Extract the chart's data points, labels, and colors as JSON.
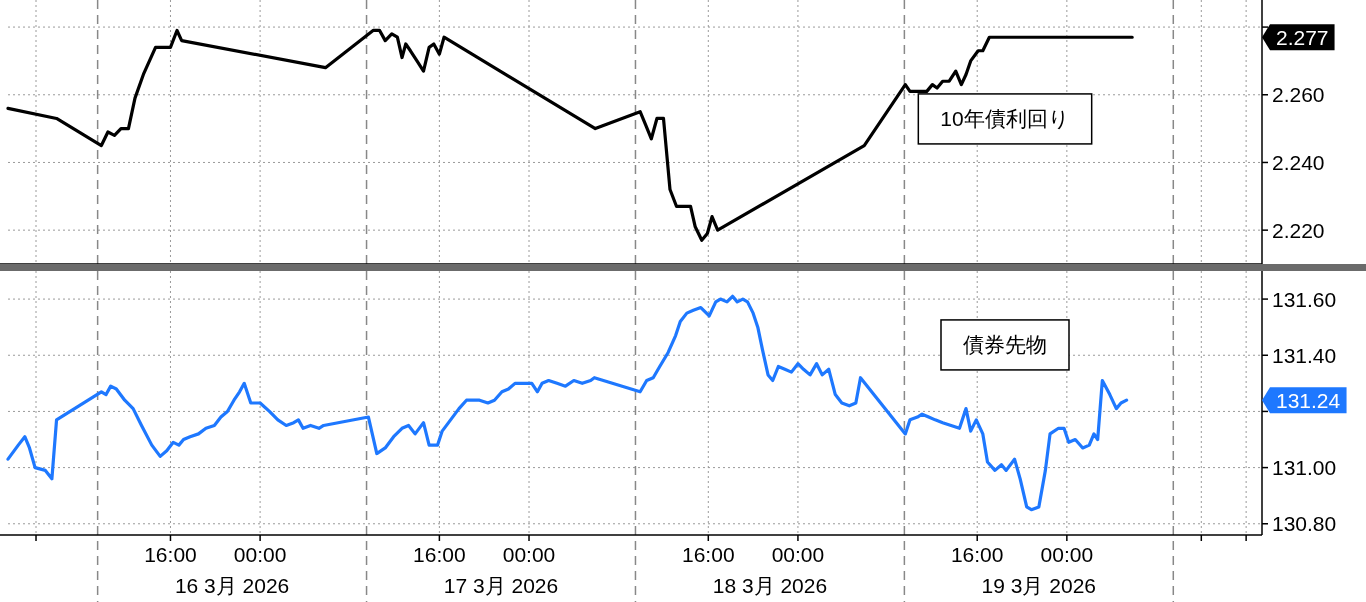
{
  "chart_data": [
    {
      "type": "line",
      "xlim": [
        "2026-03-16T01:30",
        "2026-03-20T17:25"
      ],
      "ylim": [
        2.21,
        2.288
      ],
      "grid": true,
      "tick_labels": "y",
      "xticks": [
        {
          "value": "2026-03-16T04:00",
          "label": null
        },
        {
          "value": "2026-03-16T16:00",
          "label": null
        },
        {
          "value": "2026-03-17T00:00",
          "label": null
        },
        {
          "value": "2026-03-17T16:00",
          "label": null
        },
        {
          "value": "2026-03-18T00:00",
          "label": null
        },
        {
          "value": "2026-03-18T16:00",
          "label": null
        },
        {
          "value": "2026-03-19T00:00",
          "label": null
        },
        {
          "value": "2026-03-19T16:00",
          "label": null
        },
        {
          "value": "2026-03-20T00:00",
          "label": null
        },
        {
          "value": "2026-03-20T12:00",
          "label": null
        },
        {
          "value": "2026-03-20T16:00",
          "label": null
        }
      ],
      "yticks": [
        {
          "value": 2.22,
          "label": "2.220"
        },
        {
          "value": 2.24,
          "label": "2.240"
        },
        {
          "value": 2.26,
          "label": "2.260"
        },
        {
          "value": 2.28,
          "label": null
        }
      ],
      "ref_lines": [
        {
          "axis": "x",
          "value": "2026-03-16T09:30",
          "line_style": "dashed",
          "color": "#888888"
        },
        {
          "axis": "x",
          "value": "2026-03-17T09:30",
          "line_style": "dashed",
          "color": "#888888"
        },
        {
          "axis": "x",
          "value": "2026-03-18T09:30",
          "line_style": "dashed",
          "color": "#888888"
        },
        {
          "axis": "x",
          "value": "2026-03-19T09:30",
          "line_style": "dashed",
          "color": "#888888"
        },
        {
          "axis": "x",
          "value": "2026-03-20T09:30",
          "line_style": "dashed",
          "color": "#888888"
        }
      ],
      "annotations": [
        "2.277"
      ],
      "series": [
        {
          "name": "10年債利回り",
          "color": "#000000",
          "x": [
            "2026-03-16T01:30",
            "2026-03-16T05:50",
            "2026-03-16T09:50",
            "2026-03-16T10:25",
            "2026-03-16T11:00",
            "2026-03-16T11:35",
            "2026-03-16T12:15",
            "2026-03-16T12:50",
            "2026-03-16T13:35",
            "2026-03-16T14:40",
            "2026-03-16T16:00",
            "2026-03-16T16:35",
            "2026-03-16T17:00",
            "2026-03-17T05:50",
            "2026-03-17T10:05",
            "2026-03-17T10:40",
            "2026-03-17T11:10",
            "2026-03-17T11:45",
            "2026-03-17T12:15",
            "2026-03-17T12:40",
            "2026-03-17T13:00",
            "2026-03-17T13:25",
            "2026-03-17T14:00",
            "2026-03-17T14:35",
            "2026-03-17T15:05",
            "2026-03-17T15:30",
            "2026-03-17T16:00",
            "2026-03-17T16:25",
            "2026-03-18T05:55",
            "2026-03-18T09:55",
            "2026-03-18T10:25",
            "2026-03-18T10:55",
            "2026-03-18T11:25",
            "2026-03-18T12:00",
            "2026-03-18T12:15",
            "2026-03-18T12:35",
            "2026-03-18T13:10",
            "2026-03-18T14:00",
            "2026-03-18T14:25",
            "2026-03-18T14:50",
            "2026-03-18T15:25",
            "2026-03-18T15:55",
            "2026-03-18T16:20",
            "2026-03-18T16:50",
            "2026-03-19T05:55",
            "2026-03-19T09:35",
            "2026-03-19T10:00",
            "2026-03-19T10:30",
            "2026-03-19T10:55",
            "2026-03-19T11:30",
            "2026-03-19T12:00",
            "2026-03-19T12:25",
            "2026-03-19T12:55",
            "2026-03-19T13:30",
            "2026-03-19T14:05",
            "2026-03-19T14:35",
            "2026-03-19T15:00",
            "2026-03-19T15:25",
            "2026-03-19T16:05",
            "2026-03-19T16:30",
            "2026-03-19T17:05",
            "2026-03-20T05:50"
          ],
          "values": [
            2.256,
            2.253,
            2.245,
            2.249,
            2.248,
            2.25,
            2.25,
            2.259,
            2.266,
            2.274,
            2.274,
            2.279,
            2.276,
            2.268,
            2.279,
            2.279,
            2.276,
            2.278,
            2.277,
            2.271,
            2.275,
            2.273,
            2.27,
            2.267,
            2.274,
            2.275,
            2.272,
            2.277,
            2.25,
            2.255,
            2.251,
            2.247,
            2.253,
            2.253,
            2.244,
            2.232,
            2.227,
            2.227,
            2.227,
            2.221,
            2.217,
            2.219,
            2.224,
            2.22,
            2.245,
            2.263,
            2.261,
            2.261,
            2.261,
            2.261,
            2.263,
            2.262,
            2.264,
            2.264,
            2.267,
            2.263,
            2.266,
            2.27,
            2.273,
            2.273,
            2.277,
            2.277
          ]
        }
      ]
    },
    {
      "type": "line",
      "xlim": [
        "2026-03-16T01:30",
        "2026-03-20T17:25"
      ],
      "ylim": [
        130.76,
        131.7
      ],
      "grid": true,
      "xticks": [
        {
          "value": "2026-03-16T04:00",
          "label": null
        },
        {
          "value": "2026-03-16T16:00",
          "label": "16:00"
        },
        {
          "value": "2026-03-17T00:00",
          "label": "00:00"
        },
        {
          "value": "2026-03-17T16:00",
          "label": "16:00"
        },
        {
          "value": "2026-03-18T00:00",
          "label": "00:00"
        },
        {
          "value": "2026-03-18T16:00",
          "label": "16:00"
        },
        {
          "value": "2026-03-19T00:00",
          "label": "00:00"
        },
        {
          "value": "2026-03-19T16:00",
          "label": "16:00"
        },
        {
          "value": "2026-03-20T00:00",
          "label": "00:00"
        },
        {
          "value": "2026-03-20T12:00",
          "label": null
        },
        {
          "value": "2026-03-20T16:00",
          "label": null
        }
      ],
      "yticks": [
        {
          "value": 130.8,
          "label": "130.80"
        },
        {
          "value": 131.0,
          "label": "131.00"
        },
        {
          "value": 131.2,
          "label": null
        },
        {
          "value": 131.4,
          "label": "131.40"
        },
        {
          "value": 131.6,
          "label": "131.60"
        }
      ],
      "ref_lines": [
        {
          "axis": "x",
          "value": "2026-03-16T09:30",
          "line_style": "dashed",
          "color": "#888888"
        },
        {
          "axis": "x",
          "value": "2026-03-17T09:30",
          "line_style": "dashed",
          "color": "#888888"
        },
        {
          "axis": "x",
          "value": "2026-03-18T09:30",
          "line_style": "dashed",
          "color": "#888888"
        },
        {
          "axis": "x",
          "value": "2026-03-19T09:30",
          "line_style": "dashed",
          "color": "#888888"
        },
        {
          "axis": "x",
          "value": "2026-03-20T09:30",
          "line_style": "dashed",
          "color": "#888888"
        }
      ],
      "annotations": [
        "131.24",
        "16 3月 2026",
        "17 3月 2026",
        "18 3月 2026",
        "19 3月 2026"
      ],
      "series": [
        {
          "name": "債券先物",
          "color": "#1e78ff",
          "x": [
            "2026-03-16T01:30",
            "2026-03-16T02:25",
            "2026-03-16T03:00",
            "2026-03-16T03:25",
            "2026-03-16T03:55",
            "2026-03-16T04:50",
            "2026-03-16T05:25",
            "2026-03-16T05:50",
            "2026-03-16T09:50",
            "2026-03-16T10:15",
            "2026-03-16T10:40",
            "2026-03-16T11:10",
            "2026-03-16T11:55",
            "2026-03-16T12:40",
            "2026-03-16T13:25",
            "2026-03-16T14:20",
            "2026-03-16T15:05",
            "2026-03-16T15:40",
            "2026-03-16T16:15",
            "2026-03-16T16:45",
            "2026-03-16T17:10",
            "2026-03-16T17:45",
            "2026-03-16T18:30",
            "2026-03-16T19:10",
            "2026-03-16T19:55",
            "2026-03-16T20:30",
            "2026-03-16T21:05",
            "2026-03-16T21:40",
            "2026-03-16T22:10",
            "2026-03-16T22:35",
            "2026-03-16T23:10",
            "2026-03-17T00:00",
            "2026-03-17T00:50",
            "2026-03-17T01:35",
            "2026-03-17T02:20",
            "2026-03-17T03:00",
            "2026-03-17T03:25",
            "2026-03-17T03:50",
            "2026-03-17T04:30",
            "2026-03-17T05:15",
            "2026-03-17T05:40",
            "2026-03-17T09:40",
            "2026-03-17T10:25",
            "2026-03-17T11:10",
            "2026-03-17T11:55",
            "2026-03-17T12:40",
            "2026-03-17T13:15",
            "2026-03-17T13:50",
            "2026-03-17T14:35",
            "2026-03-17T15:05",
            "2026-03-17T15:50",
            "2026-03-17T16:15",
            "2026-03-17T17:00",
            "2026-03-17T17:45",
            "2026-03-17T18:25",
            "2026-03-17T19:00",
            "2026-03-17T19:35",
            "2026-03-17T20:20",
            "2026-03-17T20:55",
            "2026-03-17T21:35",
            "2026-03-17T22:10",
            "2026-03-17T22:45",
            "2026-03-17T23:30",
            "2026-03-18T00:15",
            "2026-03-18T00:45",
            "2026-03-18T01:10",
            "2026-03-18T01:45",
            "2026-03-18T02:30",
            "2026-03-18T03:15",
            "2026-03-18T04:00",
            "2026-03-18T04:45",
            "2026-03-18T05:30",
            "2026-03-18T05:50",
            "2026-03-18T09:55",
            "2026-03-18T10:30",
            "2026-03-18T11:05",
            "2026-03-18T11:40",
            "2026-03-18T12:25",
            "2026-03-18T13:05",
            "2026-03-18T13:30",
            "2026-03-18T14:05",
            "2026-03-18T14:40",
            "2026-03-18T15:20",
            "2026-03-18T16:05",
            "2026-03-18T16:40",
            "2026-03-18T17:05",
            "2026-03-18T17:40",
            "2026-03-18T18:10",
            "2026-03-18T18:35",
            "2026-03-18T19:05",
            "2026-03-18T19:30",
            "2026-03-18T20:00",
            "2026-03-18T20:25",
            "2026-03-18T20:50",
            "2026-03-18T21:20",
            "2026-03-18T21:45",
            "2026-03-18T22:15",
            "2026-03-18T22:50",
            "2026-03-18T23:25",
            "2026-03-19T00:00",
            "2026-03-19T00:30",
            "2026-03-19T01:05",
            "2026-03-19T01:40",
            "2026-03-19T02:10",
            "2026-03-19T02:45",
            "2026-03-19T03:20",
            "2026-03-19T03:55",
            "2026-03-19T04:35",
            "2026-03-19T05:10",
            "2026-03-19T05:35",
            "2026-03-19T09:35",
            "2026-03-19T10:00",
            "2026-03-19T10:40",
            "2026-03-19T11:05",
            "2026-03-19T11:40",
            "2026-03-19T12:15",
            "2026-03-19T12:55",
            "2026-03-19T13:40",
            "2026-03-19T14:25",
            "2026-03-19T15:00",
            "2026-03-19T15:25",
            "2026-03-19T15:55",
            "2026-03-19T16:30",
            "2026-03-19T16:55",
            "2026-03-19T17:35",
            "2026-03-19T18:10",
            "2026-03-19T18:35",
            "2026-03-19T19:20",
            "2026-03-19T19:50",
            "2026-03-19T20:25",
            "2026-03-19T20:50",
            "2026-03-19T21:30",
            "2026-03-19T22:05",
            "2026-03-19T22:30",
            "2026-03-19T23:15",
            "2026-03-19T23:45",
            "2026-03-20T00:10",
            "2026-03-20T00:45",
            "2026-03-20T01:25",
            "2026-03-20T02:00",
            "2026-03-20T02:25",
            "2026-03-20T02:45",
            "2026-03-20T03:10",
            "2026-03-20T03:50",
            "2026-03-20T04:25",
            "2026-03-20T04:50",
            "2026-03-20T05:20"
          ],
          "values": [
            131.03,
            131.08,
            131.11,
            131.07,
            131.0,
            130.99,
            130.96,
            131.17,
            131.27,
            131.26,
            131.29,
            131.28,
            131.24,
            131.21,
            131.15,
            131.08,
            131.04,
            131.06,
            131.09,
            131.08,
            131.1,
            131.11,
            131.12,
            131.14,
            131.15,
            131.18,
            131.2,
            131.24,
            131.27,
            131.3,
            131.23,
            131.23,
            131.2,
            131.17,
            131.15,
            131.16,
            131.17,
            131.14,
            131.15,
            131.14,
            131.15,
            131.18,
            131.05,
            131.07,
            131.11,
            131.14,
            131.15,
            131.12,
            131.16,
            131.08,
            131.08,
            131.13,
            131.17,
            131.21,
            131.24,
            131.24,
            131.24,
            131.23,
            131.24,
            131.27,
            131.28,
            131.3,
            131.3,
            131.3,
            131.27,
            131.3,
            131.31,
            131.3,
            131.29,
            131.31,
            131.3,
            131.31,
            131.32,
            131.27,
            131.31,
            131.32,
            131.36,
            131.41,
            131.47,
            131.52,
            131.55,
            131.56,
            131.57,
            131.54,
            131.59,
            131.6,
            131.59,
            131.61,
            131.59,
            131.6,
            131.59,
            131.55,
            131.5,
            131.42,
            131.33,
            131.31,
            131.36,
            131.35,
            131.34,
            131.37,
            131.35,
            131.33,
            131.37,
            131.33,
            131.35,
            131.26,
            131.23,
            131.22,
            131.23,
            131.32,
            131.12,
            131.17,
            131.18,
            131.19,
            131.18,
            131.17,
            131.16,
            131.15,
            131.14,
            131.21,
            131.13,
            131.17,
            131.12,
            131.02,
            130.99,
            131.01,
            130.99,
            131.03,
            130.96,
            130.86,
            130.85,
            130.86,
            130.99,
            131.12,
            131.14,
            131.14,
            131.09,
            131.1,
            131.07,
            131.08,
            131.12,
            131.1,
            131.31,
            131.26,
            131.21,
            131.23,
            131.24
          ]
        }
      ]
    }
  ]
}
